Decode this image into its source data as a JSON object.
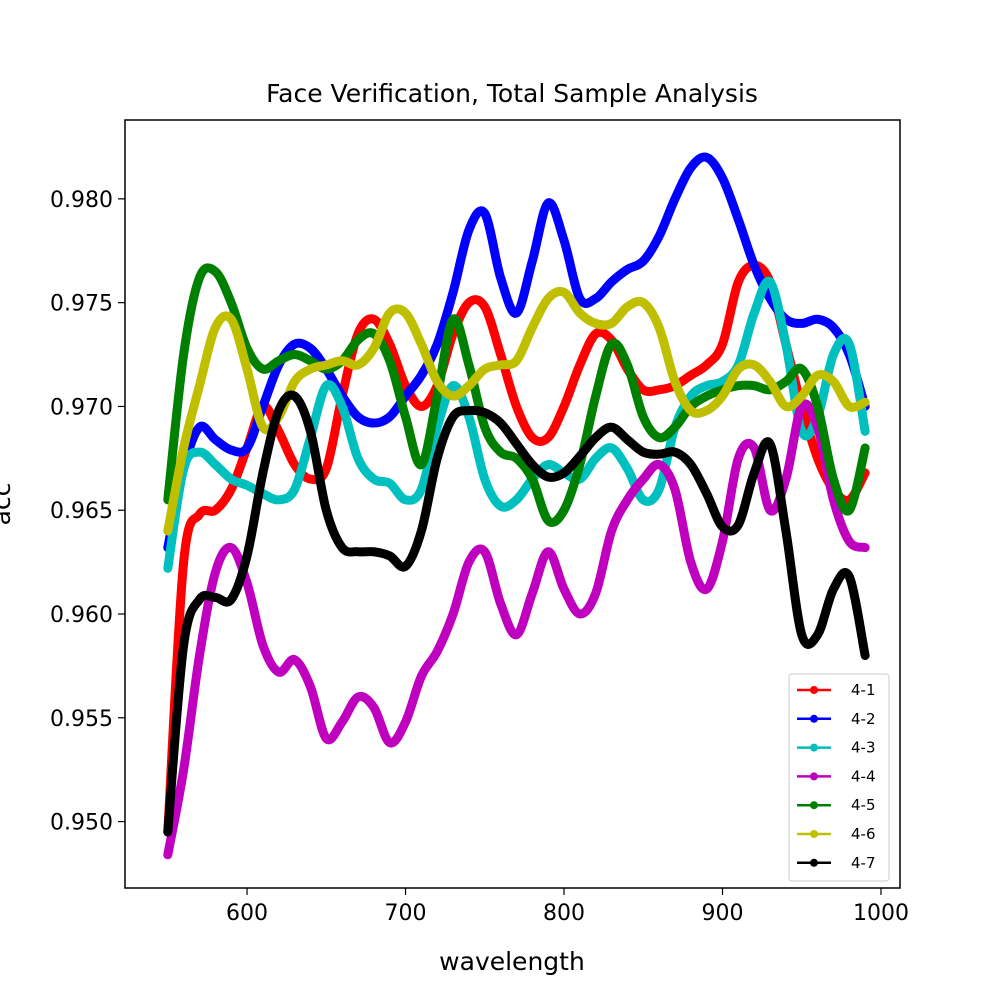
{
  "chart_data": {
    "type": "line",
    "title": "Face Verification, Total Sample Analysis",
    "xlabel": "wavelength",
    "ylabel": "acc",
    "xlim": [
      523,
      1012
    ],
    "ylim": [
      0.9468,
      0.9838
    ],
    "xticks": [
      600,
      700,
      800,
      900,
      1000
    ],
    "xtick_labels": [
      "600",
      "700",
      "800",
      "900",
      "1000"
    ],
    "yticks": [
      0.95,
      0.955,
      0.96,
      0.965,
      0.97,
      0.975,
      0.98
    ],
    "ytick_labels": [
      "0.950",
      "0.955",
      "0.960",
      "0.965",
      "0.970",
      "0.975",
      "0.980"
    ],
    "grid": false,
    "legend_position": "lower right",
    "x": [
      550,
      560,
      570,
      580,
      590,
      600,
      610,
      620,
      630,
      640,
      650,
      660,
      670,
      680,
      690,
      700,
      710,
      720,
      730,
      740,
      750,
      760,
      770,
      780,
      790,
      800,
      810,
      820,
      830,
      840,
      850,
      860,
      870,
      880,
      890,
      900,
      910,
      920,
      930,
      940,
      950,
      960,
      970,
      980,
      990
    ],
    "series": [
      {
        "name": "4-1",
        "color": "#ff0000",
        "values": [
          0.9495,
          0.9625,
          0.9648,
          0.965,
          0.966,
          0.968,
          0.97,
          0.9688,
          0.9672,
          0.9665,
          0.967,
          0.9705,
          0.9735,
          0.9742,
          0.973,
          0.971,
          0.97,
          0.971,
          0.9735,
          0.975,
          0.9748,
          0.9725,
          0.97,
          0.9685,
          0.9685,
          0.97,
          0.972,
          0.9735,
          0.9732,
          0.9718,
          0.9708,
          0.9708,
          0.971,
          0.9715,
          0.972,
          0.973,
          0.976,
          0.9768,
          0.976,
          0.973,
          0.97,
          0.9675,
          0.966,
          0.9655,
          0.9668
        ]
      },
      {
        "name": "4-2",
        "color": "#0000ff",
        "values": [
          0.9632,
          0.967,
          0.969,
          0.9684,
          0.9679,
          0.968,
          0.97,
          0.972,
          0.973,
          0.9728,
          0.9718,
          0.9705,
          0.9695,
          0.9692,
          0.9695,
          0.9705,
          0.9715,
          0.973,
          0.9755,
          0.9785,
          0.9793,
          0.9762,
          0.9745,
          0.977,
          0.9798,
          0.978,
          0.9752,
          0.9752,
          0.976,
          0.9766,
          0.977,
          0.9782,
          0.98,
          0.9815,
          0.982,
          0.981,
          0.979,
          0.9768,
          0.9752,
          0.9742,
          0.974,
          0.9742,
          0.9738,
          0.9725,
          0.97
        ]
      },
      {
        "name": "4-3",
        "color": "#00bfbf",
        "values": [
          0.9622,
          0.967,
          0.9678,
          0.9672,
          0.9665,
          0.9662,
          0.9658,
          0.9655,
          0.966,
          0.9685,
          0.971,
          0.97,
          0.9675,
          0.9665,
          0.9663,
          0.9655,
          0.966,
          0.969,
          0.971,
          0.9695,
          0.9665,
          0.9652,
          0.9655,
          0.9665,
          0.9672,
          0.9668,
          0.9665,
          0.9675,
          0.968,
          0.967,
          0.9655,
          0.966,
          0.969,
          0.9705,
          0.971,
          0.9712,
          0.972,
          0.9745,
          0.976,
          0.973,
          0.9688,
          0.9695,
          0.9725,
          0.973,
          0.9688
        ]
      },
      {
        "name": "4-4",
        "color": "#bf00bf",
        "values": [
          0.9484,
          0.9525,
          0.958,
          0.962,
          0.9632,
          0.9615,
          0.9585,
          0.9572,
          0.9578,
          0.9565,
          0.954,
          0.9548,
          0.956,
          0.9555,
          0.9538,
          0.9548,
          0.957,
          0.9582,
          0.96,
          0.9625,
          0.963,
          0.9605,
          0.959,
          0.961,
          0.963,
          0.9612,
          0.96,
          0.961,
          0.964,
          0.9655,
          0.9665,
          0.9672,
          0.966,
          0.9625,
          0.9612,
          0.9635,
          0.9675,
          0.968,
          0.965,
          0.9665,
          0.97,
          0.969,
          0.9655,
          0.9635,
          0.9632
        ]
      },
      {
        "name": "4-5",
        "color": "#008000",
        "values": [
          0.9655,
          0.9725,
          0.9762,
          0.9765,
          0.975,
          0.9728,
          0.9718,
          0.9722,
          0.9725,
          0.9722,
          0.9718,
          0.9722,
          0.9732,
          0.9735,
          0.9722,
          0.9695,
          0.9672,
          0.9705,
          0.9742,
          0.972,
          0.969,
          0.9678,
          0.9675,
          0.9665,
          0.9645,
          0.965,
          0.9672,
          0.9705,
          0.973,
          0.972,
          0.9695,
          0.9685,
          0.969,
          0.97,
          0.9705,
          0.9708,
          0.971,
          0.971,
          0.9708,
          0.9712,
          0.9718,
          0.97,
          0.9665,
          0.965,
          0.968
        ]
      },
      {
        "name": "4-6",
        "color": "#bfbf00",
        "values": [
          0.964,
          0.968,
          0.971,
          0.9738,
          0.9742,
          0.9718,
          0.969,
          0.9695,
          0.9712,
          0.9718,
          0.972,
          0.9722,
          0.972,
          0.9728,
          0.9745,
          0.9745,
          0.973,
          0.9712,
          0.9705,
          0.971,
          0.9718,
          0.972,
          0.9722,
          0.9738,
          0.9752,
          0.9755,
          0.9745,
          0.974,
          0.974,
          0.9748,
          0.975,
          0.9738,
          0.9712,
          0.9698,
          0.9698,
          0.9705,
          0.9718,
          0.972,
          0.9712,
          0.97,
          0.9705,
          0.9715,
          0.9712,
          0.97,
          0.9702
        ]
      },
      {
        "name": "4-7",
        "color": "#000000",
        "values": [
          0.9495,
          0.9585,
          0.9607,
          0.9608,
          0.9607,
          0.9628,
          0.9668,
          0.9698,
          0.9705,
          0.9688,
          0.965,
          0.9632,
          0.963,
          0.963,
          0.9628,
          0.9623,
          0.964,
          0.9675,
          0.9695,
          0.9698,
          0.9697,
          0.9692,
          0.9682,
          0.9672,
          0.9666,
          0.9668,
          0.9676,
          0.9685,
          0.969,
          0.9684,
          0.9678,
          0.9677,
          0.9678,
          0.9672,
          0.9658,
          0.9642,
          0.9643,
          0.9668,
          0.9682,
          0.964,
          0.959,
          0.959,
          0.9612,
          0.9618,
          0.958
        ]
      }
    ]
  }
}
